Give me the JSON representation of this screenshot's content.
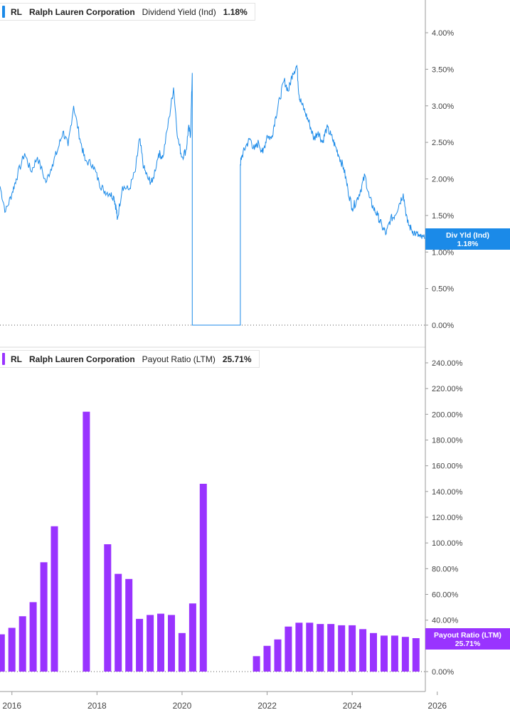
{
  "colors": {
    "yield": "#1b8ae8",
    "payout": "#9933ff",
    "axis": "#555555",
    "tick_text": "#444444"
  },
  "chart_data": [
    {
      "type": "line",
      "legend": {
        "ticker": "RL",
        "company": "Ralph Lauren Corporation",
        "metric": "Dividend Yield (Ind)",
        "value": "1.18%"
      },
      "last_value_flag": {
        "label": "Div Yld (Ind)",
        "value": "1.18%"
      },
      "y_ticks": [
        "0.00%",
        "0.50%",
        "1.00%",
        "1.50%",
        "2.00%",
        "2.50%",
        "3.00%",
        "3.50%",
        "4.00%"
      ],
      "ylim": [
        0,
        4.0
      ],
      "xlim": [
        2015.72,
        2025.72
      ],
      "x": [
        2015.72,
        2015.85,
        2016.0,
        2016.1,
        2016.3,
        2016.45,
        2016.6,
        2016.8,
        2016.95,
        2017.08,
        2017.2,
        2017.32,
        2017.45,
        2017.6,
        2017.72,
        2017.9,
        2018.05,
        2018.15,
        2018.3,
        2018.4,
        2018.45,
        2018.48,
        2018.6,
        2018.75,
        2018.9,
        2019.0,
        2019.1,
        2019.2,
        2019.3,
        2019.45,
        2019.55,
        2019.7,
        2019.8,
        2019.9,
        2020.0,
        2020.1,
        2020.15,
        2020.2,
        2020.24,
        2020.24,
        2020.26,
        2021.37,
        2021.37,
        2021.4,
        2021.5,
        2021.6,
        2021.7,
        2021.8,
        2021.9,
        2022.0,
        2022.1,
        2022.2,
        2022.3,
        2022.4,
        2022.5,
        2022.6,
        2022.7,
        2022.75,
        2022.8,
        2022.9,
        2023.0,
        2023.1,
        2023.2,
        2023.3,
        2023.4,
        2023.5,
        2023.6,
        2023.7,
        2023.8,
        2023.9,
        2024.0,
        2024.1,
        2024.2,
        2024.3,
        2024.4,
        2024.5,
        2024.6,
        2024.7,
        2024.8,
        2024.9,
        2025.0,
        2025.1,
        2025.2,
        2025.3,
        2025.4,
        2025.5,
        2025.6,
        2025.7
      ],
      "y": [
        1.9,
        1.55,
        1.8,
        2.0,
        2.35,
        2.1,
        2.3,
        1.95,
        2.2,
        2.4,
        2.65,
        2.45,
        3.0,
        2.55,
        2.25,
        2.2,
        1.95,
        1.85,
        1.8,
        1.75,
        1.6,
        1.45,
        1.9,
        1.85,
        2.1,
        2.55,
        2.15,
        2.0,
        1.95,
        2.35,
        2.3,
        2.85,
        3.25,
        2.55,
        2.3,
        2.4,
        2.7,
        2.6,
        3.45,
        0,
        0,
        0,
        2.2,
        2.3,
        2.45,
        2.55,
        2.4,
        2.5,
        2.35,
        2.6,
        2.55,
        2.85,
        3.1,
        3.35,
        3.2,
        3.45,
        3.55,
        3.15,
        3.05,
        2.9,
        2.75,
        2.55,
        2.65,
        2.5,
        2.7,
        2.6,
        2.45,
        2.3,
        2.15,
        1.85,
        1.6,
        1.7,
        1.85,
        2.05,
        1.75,
        1.6,
        1.5,
        1.35,
        1.25,
        1.45,
        1.5,
        1.65,
        1.8,
        1.4,
        1.3,
        1.25,
        1.2,
        1.18
      ]
    },
    {
      "type": "bar",
      "legend": {
        "ticker": "RL",
        "company": "Ralph Lauren Corporation",
        "metric": "Payout Ratio (LTM)",
        "value": "25.71%"
      },
      "last_value_flag": {
        "label": "Payout Ratio (LTM)",
        "value": "25.71%"
      },
      "y_ticks": [
        "0.00%",
        "20.00%",
        "40.00%",
        "60.00%",
        "80.00%",
        "100.00%",
        "120.00%",
        "140.00%",
        "160.00%",
        "180.00%",
        "200.00%",
        "220.00%",
        "240.00%"
      ],
      "ylim": [
        0,
        240
      ],
      "xlim": [
        2015.72,
        2025.72
      ],
      "x": [
        2015.75,
        2016.0,
        2016.25,
        2016.5,
        2016.75,
        2017.0,
        2017.75,
        2018.25,
        2018.5,
        2018.75,
        2019.0,
        2019.25,
        2019.5,
        2019.75,
        2020.0,
        2020.25,
        2020.5,
        2021.75,
        2022.0,
        2022.25,
        2022.5,
        2022.75,
        2023.0,
        2023.25,
        2023.5,
        2023.75,
        2024.0,
        2024.25,
        2024.5,
        2024.75,
        2025.0,
        2025.25,
        2025.5
      ],
      "values": [
        29,
        34,
        43,
        54,
        85,
        113,
        202,
        99,
        76,
        72,
        41,
        44,
        45,
        44,
        30,
        53,
        146,
        12,
        20,
        25,
        35,
        38,
        38,
        37,
        37,
        36,
        36,
        33,
        30,
        28,
        28,
        27,
        26
      ]
    }
  ],
  "x_axis": {
    "ticks": [
      "2016",
      "2018",
      "2020",
      "2022",
      "2024",
      "2026"
    ],
    "tick_years": [
      2016,
      2018,
      2020,
      2022,
      2024,
      2026
    ]
  }
}
